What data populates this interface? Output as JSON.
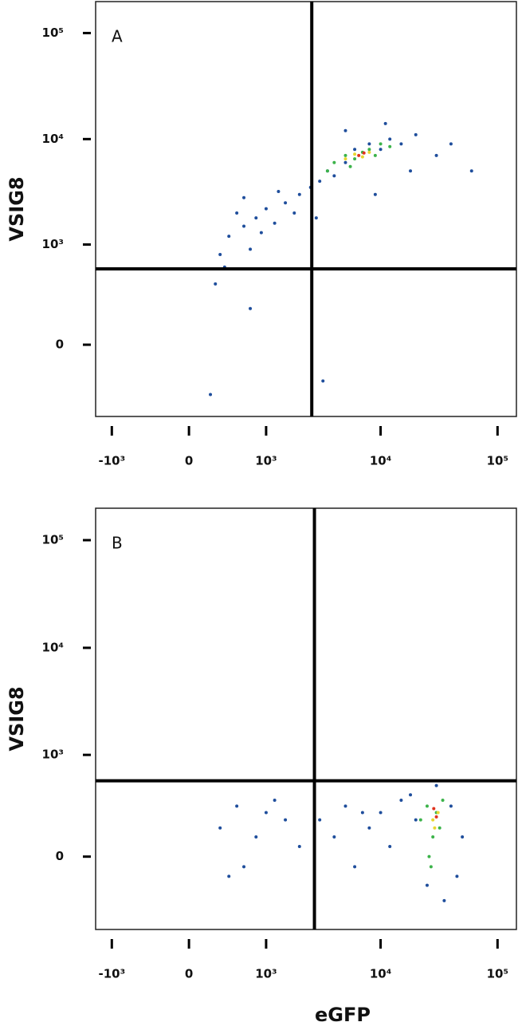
{
  "chart_data": [
    {
      "type": "scatter",
      "label": "A",
      "y_label": "VSIG8",
      "xscale": "biexponential",
      "yscale": "biexponential",
      "xlim": [
        -1408,
        145000
      ],
      "ylim": [
        -522,
        198000
      ],
      "xticks": [
        {
          "value": -1000,
          "label": "-10³"
        },
        0,
        {
          "value": 1000,
          "label": "10³"
        },
        {
          "value": 10000,
          "label": "10⁴"
        },
        {
          "value": 100000,
          "label": "10⁵"
        }
      ],
      "yticks": [
        0,
        {
          "value": 1000,
          "label": "10³"
        },
        {
          "value": 10000,
          "label": "10⁴"
        },
        {
          "value": 100000,
          "label": "10⁵"
        }
      ],
      "gates": {
        "x": 2560,
        "y": 575
      },
      "series": [
        {
          "color": "#1f4e9c",
          "x": [
            300,
            400,
            600,
            800,
            500,
            1000,
            1200,
            1500,
            2000,
            700,
            350,
            250,
            900,
            1800,
            2500,
            3000,
            3500,
            4000,
            5000,
            6000,
            8000,
            10000,
            12000,
            15000,
            20000,
            30000,
            40000,
            18000,
            9000,
            2800,
            1300,
            600,
            5000,
            11000,
            60000,
            3200,
            200,
            700
          ],
          "values": [
            800,
            1200,
            1500,
            1800,
            2000,
            2200,
            1600,
            2500,
            3000,
            900,
            600,
            400,
            1300,
            2000,
            3500,
            4000,
            5000,
            4500,
            6000,
            8000,
            9000,
            8000,
            10000,
            9000,
            11000,
            7000,
            9000,
            5000,
            3000,
            1800,
            3200,
            2800,
            12000,
            14000,
            5000,
            -200,
            -300,
            200
          ]
        },
        {
          "color": "#3cb34a",
          "x": [
            4000,
            5000,
            6000,
            7000,
            8000,
            9000,
            5500,
            10000,
            3500,
            12000
          ],
          "values": [
            6000,
            7000,
            6500,
            7500,
            8000,
            7000,
            5500,
            9000,
            5000,
            8500
          ]
        },
        {
          "color": "#e8d630",
          "x": [
            6000,
            7000,
            8000,
            5000
          ],
          "values": [
            7200,
            6800,
            7500,
            6500
          ]
        },
        {
          "color": "#e0321e",
          "x": [
            6500,
            7200
          ],
          "values": [
            7000,
            7400
          ]
        }
      ]
    },
    {
      "type": "scatter",
      "label": "B",
      "y_label": "VSIG8",
      "x_label": "eGFP",
      "xscale": "biexponential",
      "yscale": "biexponential",
      "xlim": [
        -1408,
        145000
      ],
      "ylim": [
        -522,
        198000
      ],
      "xticks": [
        {
          "value": -1000,
          "label": "-10³"
        },
        0,
        {
          "value": 1000,
          "label": "10³"
        },
        {
          "value": 10000,
          "label": "10⁴"
        },
        {
          "value": 100000,
          "label": "10⁵"
        }
      ],
      "yticks": [
        0,
        {
          "value": 1000,
          "label": "10³"
        },
        {
          "value": 10000,
          "label": "10⁴"
        },
        {
          "value": 100000,
          "label": "10⁵"
        }
      ],
      "gates": {
        "x": 2700,
        "y": 560
      },
      "series": [
        {
          "color": "#1f4e9c",
          "x": [
            300,
            500,
            800,
            1000,
            1500,
            2000,
            600,
            1200,
            3000,
            4000,
            5000,
            6000,
            8000,
            10000,
            12000,
            15000,
            20000,
            25000,
            40000,
            50000,
            18000,
            7000,
            35000,
            45000,
            400,
            30000
          ],
          "values": [
            150,
            300,
            100,
            250,
            200,
            50,
            -50,
            350,
            200,
            100,
            300,
            -50,
            150,
            250,
            50,
            350,
            200,
            -150,
            300,
            100,
            400,
            250,
            -250,
            -100,
            -100,
            500
          ]
        },
        {
          "color": "#3cb34a",
          "x": [
            22000,
            25000,
            28000,
            30000,
            32000,
            26000,
            34000,
            27000
          ],
          "values": [
            200,
            300,
            100,
            250,
            150,
            0,
            350,
            -50
          ]
        },
        {
          "color": "#e8d630",
          "x": [
            28000,
            31000,
            29000
          ],
          "values": [
            200,
            250,
            150
          ]
        },
        {
          "color": "#e0321e",
          "x": [
            30000,
            28500
          ],
          "values": [
            220,
            280
          ]
        }
      ]
    }
  ]
}
